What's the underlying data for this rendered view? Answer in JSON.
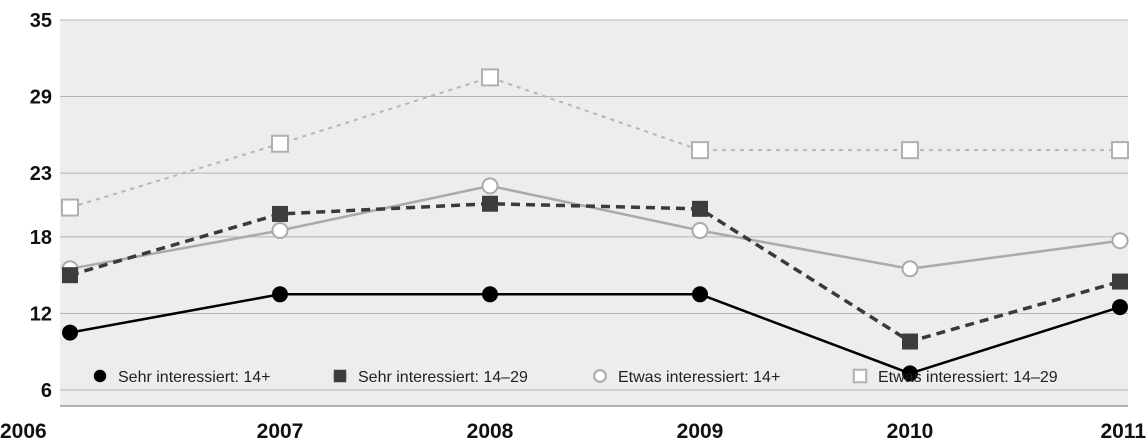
{
  "chart_data": {
    "type": "line",
    "x": [
      "2006",
      "2007",
      "2008",
      "2009",
      "2010",
      "2011"
    ],
    "ylim": [
      0,
      35
    ],
    "yticks": [
      "35",
      "29",
      "23",
      "18",
      "12",
      "6"
    ],
    "ytick_values": [
      35,
      29,
      23,
      18,
      12,
      6
    ],
    "grid": true,
    "legend_position": "bottom-inside",
    "series": [
      {
        "name": "Sehr interessiert: 14+",
        "values": [
          10.5,
          13.5,
          13.5,
          13.5,
          7.3,
          12.5
        ],
        "color": "#000000",
        "line": "solid",
        "marker": "filled-circle"
      },
      {
        "name": "Sehr interessiert: 14–29",
        "values": [
          15.0,
          19.8,
          20.6,
          20.2,
          9.8,
          14.5
        ],
        "color": "#3a3a3a",
        "line": "dashed",
        "marker": "filled-square"
      },
      {
        "name": "Etwas interessiert: 14+",
        "values": [
          15.5,
          18.5,
          22.0,
          18.5,
          15.5,
          17.7
        ],
        "color": "#aaaaaa",
        "line": "solid",
        "marker": "open-circle"
      },
      {
        "name": "Etwas interessiert: 14–29",
        "values": [
          20.3,
          25.3,
          30.5,
          24.8,
          24.8,
          24.8
        ],
        "color": "#b5b5b5",
        "line": "dotted",
        "marker": "open-square"
      }
    ]
  }
}
